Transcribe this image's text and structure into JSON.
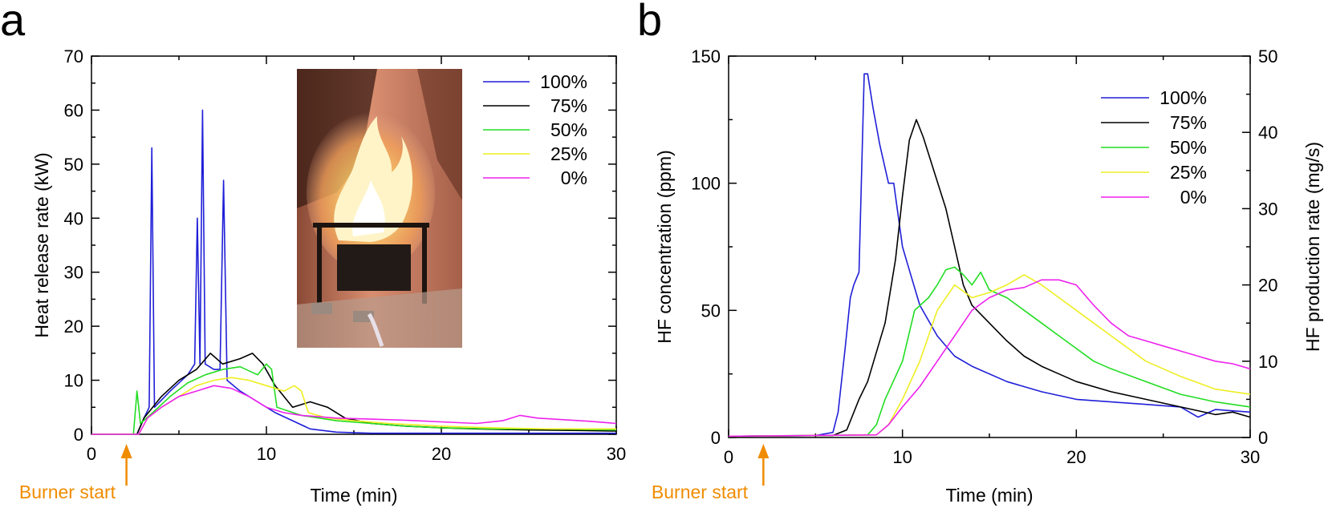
{
  "chart_data": [
    {
      "panel": "a",
      "type": "line",
      "xlabel": "Time (min)",
      "ylabel": "Heat release rate (kW)",
      "xlim": [
        0,
        30
      ],
      "ylim": [
        0,
        70
      ],
      "x_ticks": [
        0,
        10,
        20,
        30
      ],
      "y_ticks": [
        0,
        10,
        20,
        30,
        40,
        50,
        60,
        70
      ],
      "legend_position": "top-right",
      "grid": false,
      "annotation": {
        "text": "Burner start",
        "x": 2,
        "color": "#f08c00"
      },
      "inset_photo": "flame",
      "series": [
        {
          "name": "100%",
          "color": "#1f1fd8",
          "points": [
            [
              0,
              0
            ],
            [
              2.6,
              0
            ],
            [
              3,
              3
            ],
            [
              3.3,
              5
            ],
            [
              3.45,
              53
            ],
            [
              3.6,
              5
            ],
            [
              4.5,
              8
            ],
            [
              5.5,
              11
            ],
            [
              5.9,
              13
            ],
            [
              6.05,
              40
            ],
            [
              6.2,
              13
            ],
            [
              6.35,
              60
            ],
            [
              6.5,
              13
            ],
            [
              7,
              12
            ],
            [
              7.35,
              12
            ],
            [
              7.55,
              47
            ],
            [
              7.75,
              10
            ],
            [
              8.5,
              8
            ],
            [
              9.5,
              6
            ],
            [
              10.5,
              4
            ],
            [
              11.5,
              2.5
            ],
            [
              12.5,
              1
            ],
            [
              14,
              0.4
            ],
            [
              16,
              0.2
            ],
            [
              20,
              0.2
            ],
            [
              25,
              0.2
            ],
            [
              30,
              0.2
            ]
          ]
        },
        {
          "name": "75%",
          "color": "#000000",
          "points": [
            [
              0,
              0
            ],
            [
              2.6,
              0
            ],
            [
              3,
              3
            ],
            [
              4,
              7
            ],
            [
              5,
              10
            ],
            [
              6,
              12
            ],
            [
              6.8,
              15
            ],
            [
              7.5,
              13
            ],
            [
              8.5,
              14
            ],
            [
              9.2,
              15
            ],
            [
              9.8,
              13
            ],
            [
              10.5,
              9
            ],
            [
              11.5,
              5
            ],
            [
              12.5,
              6
            ],
            [
              13.5,
              5
            ],
            [
              14.5,
              3
            ],
            [
              16,
              2
            ],
            [
              18,
              1.5
            ],
            [
              20,
              1.2
            ],
            [
              22,
              1
            ],
            [
              25,
              0.8
            ],
            [
              28,
              0.7
            ],
            [
              30,
              0.6
            ]
          ]
        },
        {
          "name": "50%",
          "color": "#22dd22",
          "points": [
            [
              0,
              0
            ],
            [
              2.4,
              0
            ],
            [
              2.6,
              8
            ],
            [
              2.8,
              2
            ],
            [
              3.5,
              4
            ],
            [
              4.5,
              7
            ],
            [
              5.5,
              9.5
            ],
            [
              6.5,
              11
            ],
            [
              7.5,
              12
            ],
            [
              8.5,
              12.5
            ],
            [
              9.5,
              11
            ],
            [
              10,
              13
            ],
            [
              10.3,
              12
            ],
            [
              10.6,
              5
            ],
            [
              12,
              3.5
            ],
            [
              14,
              2.5
            ],
            [
              16,
              2
            ],
            [
              18,
              1.5
            ],
            [
              20,
              1.2
            ],
            [
              23,
              1
            ],
            [
              26,
              1
            ],
            [
              30,
              0.8
            ]
          ]
        },
        {
          "name": "25%",
          "color": "#eeee22",
          "points": [
            [
              0,
              0
            ],
            [
              2.7,
              0
            ],
            [
              3.2,
              3
            ],
            [
              4,
              5
            ],
            [
              5,
              7
            ],
            [
              6,
              9
            ],
            [
              7,
              10
            ],
            [
              8,
              10.5
            ],
            [
              9,
              10
            ],
            [
              10,
              9
            ],
            [
              11,
              8
            ],
            [
              11.6,
              9
            ],
            [
              12,
              8
            ],
            [
              12.4,
              4
            ],
            [
              13.5,
              3
            ],
            [
              15,
              2.5
            ],
            [
              17,
              2
            ],
            [
              20,
              1.5
            ],
            [
              23,
              1.2
            ],
            [
              26,
              1
            ],
            [
              30,
              1
            ]
          ]
        },
        {
          "name": "0%",
          "color": "#ee22ee",
          "points": [
            [
              0,
              0
            ],
            [
              2.7,
              0
            ],
            [
              3.2,
              3
            ],
            [
              4,
              5
            ],
            [
              5,
              7
            ],
            [
              6,
              8
            ],
            [
              7,
              9
            ],
            [
              8,
              8.5
            ],
            [
              9,
              7
            ],
            [
              10,
              5
            ],
            [
              11,
              4
            ],
            [
              12,
              3.5
            ],
            [
              14,
              3
            ],
            [
              16,
              2.8
            ],
            [
              18,
              2.6
            ],
            [
              20,
              2.3
            ],
            [
              22,
              2
            ],
            [
              23.5,
              2.5
            ],
            [
              24.5,
              3.5
            ],
            [
              25.5,
              3
            ],
            [
              27,
              2.7
            ],
            [
              28.5,
              2.4
            ],
            [
              30,
              2
            ]
          ]
        }
      ]
    },
    {
      "panel": "b",
      "type": "line",
      "xlabel": "Time (min)",
      "ylabel": "HF concentration (ppm)",
      "y2label": "HF production rate (mg/s)",
      "xlim": [
        0,
        30
      ],
      "ylim": [
        0,
        150
      ],
      "y2lim": [
        0,
        50
      ],
      "x_ticks": [
        0,
        10,
        20,
        30
      ],
      "y_ticks": [
        0,
        50,
        100,
        150
      ],
      "y2_ticks": [
        0,
        10,
        20,
        30,
        40,
        50
      ],
      "legend_position": "top-right",
      "grid": false,
      "annotation": {
        "text": "Burner start",
        "x": 2,
        "color": "#f08c00"
      },
      "series": [
        {
          "name": "100%",
          "color": "#1f1fd8",
          "points": [
            [
              0,
              0.5
            ],
            [
              5,
              0.8
            ],
            [
              6,
              2
            ],
            [
              6.3,
              10
            ],
            [
              6.7,
              35
            ],
            [
              7,
              55
            ],
            [
              7.2,
              60
            ],
            [
              7.5,
              65
            ],
            [
              7.8,
              143
            ],
            [
              8,
              143
            ],
            [
              8.3,
              130
            ],
            [
              8.7,
              115
            ],
            [
              9.2,
              100
            ],
            [
              9.5,
              100
            ],
            [
              10,
              75
            ],
            [
              10.3,
              68
            ],
            [
              11,
              52
            ],
            [
              12,
              40
            ],
            [
              13,
              32
            ],
            [
              14,
              28
            ],
            [
              16,
              22
            ],
            [
              18,
              18
            ],
            [
              20,
              15
            ],
            [
              22,
              14
            ],
            [
              24,
              13
            ],
            [
              26,
              12
            ],
            [
              27,
              8
            ],
            [
              28,
              11
            ],
            [
              30,
              10
            ]
          ]
        },
        {
          "name": "75%",
          "color": "#000000",
          "points": [
            [
              0,
              0.5
            ],
            [
              6,
              0.8
            ],
            [
              6.8,
              3
            ],
            [
              7.5,
              15
            ],
            [
              8,
              22
            ],
            [
              9,
              45
            ],
            [
              9.6,
              70
            ],
            [
              10,
              95
            ],
            [
              10.4,
              117
            ],
            [
              10.8,
              125
            ],
            [
              11.2,
              118
            ],
            [
              11.8,
              105
            ],
            [
              12.5,
              90
            ],
            [
              13,
              75
            ],
            [
              13.5,
              60
            ],
            [
              14,
              52
            ],
            [
              15,
              45
            ],
            [
              16,
              38
            ],
            [
              17,
              32
            ],
            [
              18,
              28
            ],
            [
              19,
              25
            ],
            [
              20,
              22
            ],
            [
              22,
              18
            ],
            [
              24,
              15
            ],
            [
              26,
              12
            ],
            [
              28,
              9
            ],
            [
              29,
              10
            ],
            [
              30,
              8
            ]
          ]
        },
        {
          "name": "50%",
          "color": "#22dd22",
          "points": [
            [
              0,
              0.5
            ],
            [
              8,
              1
            ],
            [
              8.5,
              5
            ],
            [
              9,
              15
            ],
            [
              10,
              30
            ],
            [
              10.7,
              50
            ],
            [
              11.5,
              55
            ],
            [
              12,
              60
            ],
            [
              12.5,
              66
            ],
            [
              13,
              67
            ],
            [
              13.5,
              64
            ],
            [
              14,
              60
            ],
            [
              14.5,
              65
            ],
            [
              15,
              58
            ],
            [
              16,
              55
            ],
            [
              17,
              50
            ],
            [
              18,
              45
            ],
            [
              19,
              40
            ],
            [
              20,
              35
            ],
            [
              21,
              30
            ],
            [
              22,
              27
            ],
            [
              24,
              22
            ],
            [
              26,
              17
            ],
            [
              28,
              14
            ],
            [
              30,
              12
            ]
          ]
        },
        {
          "name": "25%",
          "color": "#eeee22",
          "points": [
            [
              0,
              0.5
            ],
            [
              8.5,
              1
            ],
            [
              9.2,
              5
            ],
            [
              10,
              15
            ],
            [
              11,
              30
            ],
            [
              11.5,
              40
            ],
            [
              12,
              50
            ],
            [
              13,
              60
            ],
            [
              14,
              55
            ],
            [
              15,
              57
            ],
            [
              16,
              60
            ],
            [
              17,
              64
            ],
            [
              18,
              60
            ],
            [
              19,
              55
            ],
            [
              20,
              50
            ],
            [
              21,
              45
            ],
            [
              22,
              40
            ],
            [
              23,
              35
            ],
            [
              24,
              30
            ],
            [
              26,
              24
            ],
            [
              28,
              19
            ],
            [
              30,
              17
            ]
          ]
        },
        {
          "name": "0%",
          "color": "#ee22ee",
          "points": [
            [
              0,
              0.5
            ],
            [
              8.5,
              1
            ],
            [
              9.2,
              5
            ],
            [
              10,
              12
            ],
            [
              11,
              20
            ],
            [
              12,
              30
            ],
            [
              13,
              40
            ],
            [
              14,
              50
            ],
            [
              15,
              55
            ],
            [
              16,
              58
            ],
            [
              17,
              59
            ],
            [
              18,
              62
            ],
            [
              19,
              62
            ],
            [
              20,
              60
            ],
            [
              21,
              52
            ],
            [
              22,
              45
            ],
            [
              23,
              40
            ],
            [
              24,
              38
            ],
            [
              25,
              36
            ],
            [
              26,
              34
            ],
            [
              27,
              32
            ],
            [
              28,
              30
            ],
            [
              29,
              29
            ],
            [
              30,
              27
            ]
          ]
        }
      ]
    }
  ]
}
